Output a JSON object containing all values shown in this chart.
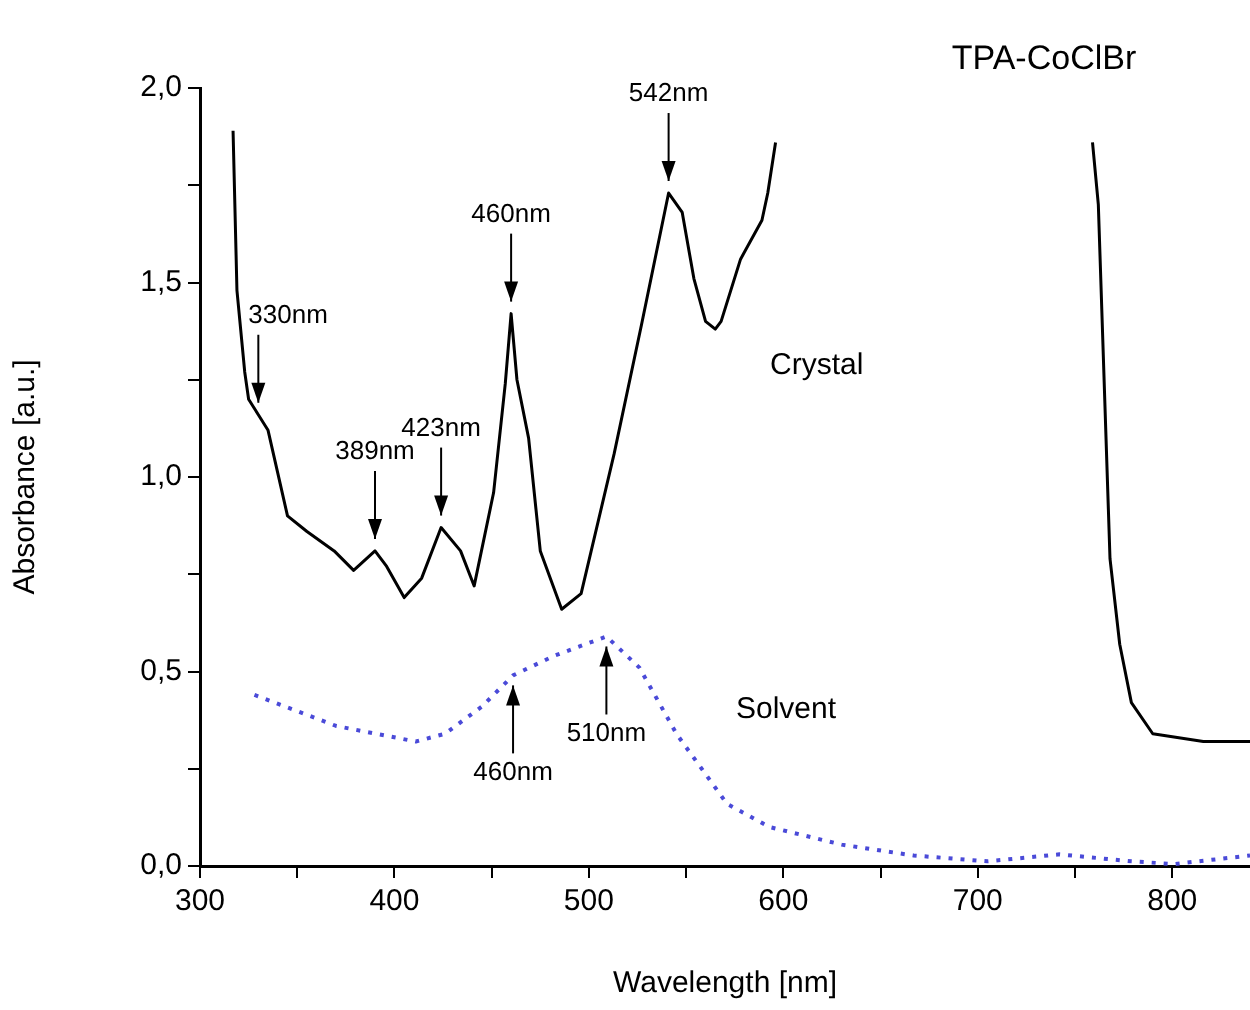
{
  "chart_data": {
    "type": "line",
    "title": "TPA-CoClBr",
    "xlabel": "Wavelength [nm]",
    "ylabel": "Absorbance [a.u.]",
    "xlim": [
      300,
      840
    ],
    "xticks": [
      300,
      {
        "value": 350,
        "label": null
      },
      400,
      {
        "value": 450,
        "label": null
      },
      500,
      {
        "value": 550,
        "label": null
      },
      600,
      {
        "value": 650,
        "label": null
      },
      700,
      {
        "value": 750,
        "label": null
      },
      800
    ],
    "ylim": [
      0,
      2
    ],
    "yticks": [
      {
        "value": 0,
        "label": "0,0"
      },
      {
        "value": 0.25,
        "label": null
      },
      {
        "value": 0.5,
        "label": "0,5"
      },
      {
        "value": 0.75,
        "label": null
      },
      {
        "value": 1,
        "label": "1,0"
      },
      {
        "value": 1.25,
        "label": null
      },
      {
        "value": 1.5,
        "label": "1,5"
      },
      {
        "value": 1.75,
        "label": null
      },
      {
        "value": 2,
        "label": "2,0"
      }
    ],
    "grid": false,
    "legend": false,
    "marker": "none",
    "series": [
      {
        "name": "Crystal",
        "color": "#000000",
        "line_style": "solid",
        "x": [
          317,
          319,
          323,
          325,
          330,
          335,
          340,
          345,
          355,
          369,
          379,
          390,
          396,
          405,
          414,
          424,
          434,
          441,
          451,
          457,
          460,
          463,
          469,
          475,
          486,
          496,
          513,
          527,
          541,
          548,
          554,
          560,
          565,
          568,
          578,
          589,
          592,
          596,
          680,
          759,
          762,
          768,
          773,
          779,
          790,
          816,
          840
        ],
        "values": [
          1.89,
          1.48,
          1.27,
          1.2,
          1.16,
          1.12,
          1.01,
          0.9,
          0.86,
          0.81,
          0.76,
          0.81,
          0.77,
          0.69,
          0.74,
          0.87,
          0.81,
          0.72,
          0.96,
          1.24,
          1.42,
          1.25,
          1.1,
          0.81,
          0.66,
          0.7,
          1.06,
          1.39,
          1.73,
          1.68,
          1.51,
          1.4,
          1.38,
          1.4,
          1.56,
          1.66,
          1.73,
          1.86,
          null,
          1.86,
          1.7,
          0.79,
          0.57,
          0.42,
          0.34,
          0.32,
          0.32
        ]
      },
      {
        "name": "Solvent",
        "color": "#4a4ad8",
        "line_style": "dotted",
        "x": [
          328,
          370,
          411,
          426,
          445,
          461,
          482,
          509,
          526,
          545,
          571,
          593,
          630,
          667,
          705,
          742,
          779,
          801,
          840
        ],
        "values": [
          0.44,
          0.36,
          0.32,
          0.34,
          0.41,
          0.49,
          0.54,
          0.59,
          0.51,
          0.34,
          0.16,
          0.1,
          0.055,
          0.027,
          0.012,
          0.03,
          0.012,
          0.005,
          0.027
        ]
      }
    ],
    "annotations": [
      {
        "text": "330nm",
        "x": 330,
        "y": 1.16
      },
      {
        "text": "389nm",
        "x": 390,
        "y": 0.81
      },
      {
        "text": "423nm",
        "x": 424,
        "y": 0.87
      },
      {
        "text": "460nm",
        "x": 460,
        "y": 1.42
      },
      {
        "text": "542nm",
        "x": 541,
        "y": 1.73
      },
      {
        "text": "460nm",
        "x": 461,
        "y": 0.49
      },
      {
        "text": "510nm",
        "x": 509,
        "y": 0.59
      }
    ]
  }
}
